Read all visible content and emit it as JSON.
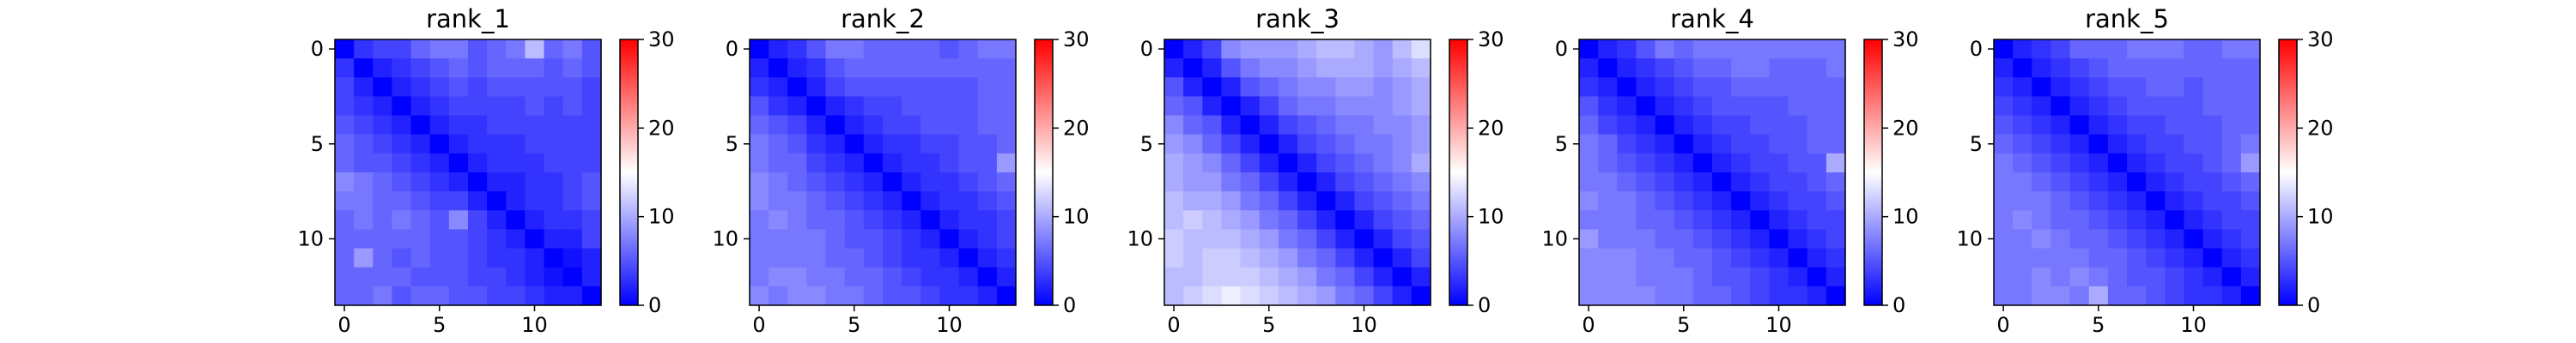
{
  "chart_data": [
    {
      "type": "heatmap",
      "title": "rank_1",
      "colormap": "bwr",
      "colorbar": {
        "range": [
          0,
          30
        ],
        "ticks": [
          0,
          10,
          20,
          30
        ]
      },
      "x_ticks": [
        0,
        5,
        10
      ],
      "y_ticks": [
        0,
        5,
        10
      ],
      "matrix": [
        [
          0,
          3,
          4,
          4,
          6,
          7,
          7,
          5,
          6,
          7,
          11,
          6,
          7,
          5
        ],
        [
          3,
          0,
          2,
          3,
          4,
          5,
          6,
          5,
          6,
          6,
          6,
          5,
          6,
          5
        ],
        [
          4,
          2,
          0,
          2,
          3,
          4,
          5,
          4,
          5,
          5,
          5,
          5,
          5,
          4
        ],
        [
          4,
          3,
          2,
          0,
          2,
          3,
          4,
          4,
          4,
          4,
          5,
          4,
          5,
          4
        ],
        [
          5,
          4,
          3,
          2,
          0,
          2,
          3,
          3,
          4,
          4,
          4,
          4,
          4,
          4
        ],
        [
          6,
          5,
          4,
          3,
          2,
          0,
          2,
          3,
          3,
          3,
          4,
          4,
          4,
          4
        ],
        [
          6,
          5,
          5,
          4,
          3,
          2,
          0,
          2,
          3,
          3,
          3,
          4,
          4,
          4
        ],
        [
          8,
          7,
          6,
          5,
          4,
          3,
          2,
          0,
          2,
          2,
          3,
          3,
          4,
          5
        ],
        [
          7,
          7,
          6,
          6,
          5,
          4,
          4,
          2,
          0,
          2,
          3,
          3,
          4,
          5
        ],
        [
          6,
          7,
          6,
          7,
          6,
          5,
          8,
          4,
          2,
          0,
          2,
          3,
          3,
          4
        ],
        [
          6,
          6,
          6,
          6,
          6,
          5,
          5,
          4,
          3,
          2,
          0,
          2,
          2,
          4
        ],
        [
          6,
          9,
          6,
          5,
          6,
          5,
          5,
          4,
          3,
          3,
          2,
          0,
          1,
          2
        ],
        [
          6,
          6,
          6,
          6,
          5,
          5,
          5,
          4,
          4,
          3,
          2,
          1,
          0,
          2
        ],
        [
          6,
          6,
          7,
          5,
          6,
          6,
          5,
          5,
          4,
          4,
          3,
          2,
          2,
          0
        ]
      ]
    },
    {
      "type": "heatmap",
      "title": "rank_2",
      "colormap": "bwr",
      "colorbar": {
        "range": [
          0,
          30
        ],
        "ticks": [
          0,
          10,
          20,
          30
        ]
      },
      "x_ticks": [
        0,
        5,
        10
      ],
      "y_ticks": [
        0,
        5,
        10
      ],
      "matrix": [
        [
          0,
          2,
          3,
          5,
          7,
          7,
          6,
          6,
          6,
          6,
          5,
          6,
          7,
          7
        ],
        [
          2,
          0,
          2,
          3,
          5,
          6,
          6,
          6,
          6,
          6,
          6,
          6,
          6,
          6
        ],
        [
          3,
          2,
          0,
          2,
          4,
          5,
          5,
          5,
          5,
          5,
          5,
          5,
          6,
          6
        ],
        [
          5,
          3,
          2,
          0,
          2,
          3,
          4,
          4,
          5,
          5,
          5,
          5,
          6,
          6
        ],
        [
          6,
          5,
          4,
          2,
          0,
          2,
          3,
          4,
          4,
          5,
          5,
          5,
          6,
          6
        ],
        [
          7,
          6,
          5,
          3,
          2,
          0,
          2,
          3,
          3,
          4,
          4,
          5,
          5,
          6
        ],
        [
          7,
          6,
          6,
          4,
          3,
          2,
          0,
          2,
          3,
          3,
          4,
          5,
          5,
          9
        ],
        [
          8,
          7,
          6,
          5,
          4,
          3,
          2,
          0,
          2,
          3,
          3,
          4,
          5,
          6
        ],
        [
          8,
          7,
          7,
          6,
          5,
          4,
          3,
          2,
          0,
          2,
          3,
          3,
          4,
          5
        ],
        [
          7,
          8,
          7,
          6,
          6,
          5,
          4,
          3,
          2,
          0,
          2,
          3,
          3,
          4
        ],
        [
          7,
          7,
          7,
          7,
          6,
          5,
          5,
          4,
          3,
          2,
          0,
          2,
          3,
          4
        ],
        [
          7,
          7,
          7,
          7,
          6,
          6,
          5,
          4,
          3,
          3,
          2,
          0,
          2,
          3
        ],
        [
          7,
          8,
          8,
          7,
          7,
          6,
          6,
          5,
          4,
          3,
          3,
          2,
          0,
          2
        ],
        [
          8,
          7,
          8,
          8,
          7,
          7,
          6,
          5,
          5,
          4,
          3,
          3,
          2,
          0
        ]
      ]
    },
    {
      "type": "heatmap",
      "title": "rank_3",
      "colormap": "bwr",
      "colorbar": {
        "range": [
          0,
          30
        ],
        "ticks": [
          0,
          10,
          20,
          30
        ]
      },
      "x_ticks": [
        0,
        5,
        10
      ],
      "y_ticks": [
        0,
        5,
        10
      ],
      "matrix": [
        [
          0,
          2,
          4,
          8,
          9,
          9,
          9,
          10,
          11,
          11,
          10,
          9,
          11,
          13
        ],
        [
          2,
          0,
          2,
          5,
          7,
          8,
          8,
          9,
          10,
          10,
          10,
          9,
          10,
          11
        ],
        [
          5,
          2,
          0,
          2,
          5,
          6,
          7,
          8,
          8,
          9,
          9,
          8,
          9,
          10
        ],
        [
          6,
          5,
          2,
          0,
          2,
          4,
          6,
          7,
          7,
          8,
          8,
          8,
          9,
          10
        ],
        [
          8,
          6,
          5,
          2,
          0,
          2,
          4,
          5,
          6,
          7,
          7,
          8,
          8,
          9
        ],
        [
          9,
          8,
          6,
          4,
          2,
          0,
          2,
          4,
          5,
          6,
          7,
          7,
          8,
          9
        ],
        [
          10,
          9,
          8,
          6,
          4,
          2,
          0,
          2,
          4,
          5,
          6,
          7,
          8,
          10
        ],
        [
          10,
          9,
          9,
          7,
          6,
          4,
          2,
          0,
          2,
          4,
          5,
          6,
          7,
          8
        ],
        [
          11,
          10,
          10,
          9,
          7,
          6,
          4,
          2,
          0,
          2,
          4,
          5,
          6,
          7
        ],
        [
          11,
          12,
          11,
          10,
          9,
          7,
          6,
          4,
          2,
          0,
          2,
          4,
          5,
          6
        ],
        [
          12,
          11,
          11,
          11,
          10,
          9,
          7,
          6,
          4,
          2,
          0,
          2,
          4,
          5
        ],
        [
          12,
          11,
          12,
          12,
          11,
          10,
          9,
          7,
          6,
          4,
          2,
          0,
          2,
          4
        ],
        [
          11,
          11,
          12,
          12,
          12,
          11,
          10,
          9,
          7,
          6,
          4,
          2,
          0,
          2
        ],
        [
          11,
          12,
          13,
          14,
          13,
          12,
          11,
          10,
          9,
          7,
          6,
          4,
          2,
          0
        ]
      ]
    },
    {
      "type": "heatmap",
      "title": "rank_4",
      "colormap": "bwr",
      "colorbar": {
        "range": [
          0,
          30
        ],
        "ticks": [
          0,
          10,
          20,
          30
        ]
      },
      "x_ticks": [
        0,
        5,
        10
      ],
      "y_ticks": [
        0,
        5,
        10
      ],
      "matrix": [
        [
          0,
          2,
          3,
          5,
          7,
          6,
          7,
          7,
          7,
          7,
          7,
          7,
          7,
          7
        ],
        [
          2,
          0,
          2,
          3,
          4,
          5,
          6,
          6,
          7,
          7,
          6,
          6,
          6,
          7
        ],
        [
          3,
          2,
          0,
          2,
          3,
          4,
          5,
          5,
          6,
          6,
          6,
          6,
          6,
          6
        ],
        [
          5,
          3,
          2,
          0,
          2,
          3,
          4,
          5,
          5,
          5,
          5,
          6,
          6,
          6
        ],
        [
          6,
          4,
          3,
          2,
          0,
          2,
          3,
          4,
          4,
          5,
          5,
          5,
          6,
          6
        ],
        [
          7,
          6,
          4,
          3,
          2,
          0,
          2,
          3,
          4,
          4,
          5,
          5,
          6,
          6
        ],
        [
          7,
          6,
          5,
          4,
          3,
          2,
          0,
          2,
          3,
          4,
          4,
          5,
          5,
          10
        ],
        [
          7,
          7,
          6,
          5,
          4,
          3,
          2,
          0,
          2,
          3,
          4,
          4,
          5,
          6
        ],
        [
          8,
          7,
          7,
          6,
          5,
          4,
          3,
          2,
          0,
          2,
          3,
          4,
          4,
          5
        ],
        [
          7,
          7,
          7,
          6,
          6,
          5,
          4,
          3,
          2,
          0,
          2,
          3,
          4,
          4
        ],
        [
          9,
          7,
          7,
          7,
          6,
          6,
          5,
          4,
          3,
          2,
          0,
          2,
          3,
          4
        ],
        [
          8,
          8,
          8,
          7,
          7,
          6,
          6,
          5,
          4,
          3,
          2,
          0,
          2,
          3
        ],
        [
          8,
          8,
          8,
          7,
          7,
          7,
          6,
          5,
          5,
          4,
          3,
          2,
          0,
          2
        ],
        [
          8,
          8,
          8,
          8,
          7,
          7,
          6,
          6,
          5,
          4,
          3,
          3,
          2,
          0
        ]
      ]
    },
    {
      "type": "heatmap",
      "title": "rank_5",
      "colormap": "bwr",
      "colorbar": {
        "range": [
          0,
          30
        ],
        "ticks": [
          0,
          10,
          20,
          30
        ]
      },
      "x_ticks": [
        0,
        5,
        10
      ],
      "y_ticks": [
        0,
        5,
        10
      ],
      "matrix": [
        [
          0,
          2,
          3,
          4,
          6,
          6,
          6,
          7,
          7,
          7,
          6,
          6,
          7,
          7
        ],
        [
          2,
          0,
          2,
          3,
          4,
          5,
          6,
          6,
          6,
          6,
          6,
          6,
          6,
          6
        ],
        [
          3,
          2,
          0,
          2,
          3,
          4,
          5,
          5,
          6,
          6,
          5,
          6,
          6,
          6
        ],
        [
          4,
          3,
          2,
          0,
          2,
          3,
          4,
          5,
          5,
          5,
          5,
          6,
          6,
          6
        ],
        [
          5,
          4,
          3,
          2,
          0,
          2,
          3,
          4,
          4,
          5,
          5,
          5,
          6,
          6
        ],
        [
          6,
          5,
          4,
          3,
          2,
          0,
          2,
          3,
          4,
          4,
          5,
          5,
          6,
          7
        ],
        [
          7,
          6,
          5,
          4,
          3,
          2,
          0,
          2,
          3,
          4,
          4,
          5,
          6,
          9
        ],
        [
          7,
          7,
          6,
          5,
          4,
          3,
          2,
          0,
          2,
          3,
          4,
          4,
          5,
          6
        ],
        [
          7,
          7,
          7,
          6,
          5,
          4,
          3,
          2,
          0,
          2,
          3,
          4,
          4,
          5
        ],
        [
          7,
          8,
          7,
          6,
          6,
          5,
          4,
          3,
          2,
          0,
          2,
          3,
          4,
          4
        ],
        [
          7,
          7,
          8,
          7,
          6,
          6,
          5,
          4,
          3,
          2,
          0,
          2,
          3,
          4
        ],
        [
          7,
          7,
          7,
          7,
          7,
          6,
          6,
          5,
          4,
          3,
          2,
          0,
          2,
          3
        ],
        [
          7,
          7,
          8,
          7,
          8,
          7,
          6,
          5,
          5,
          4,
          3,
          2,
          0,
          2
        ],
        [
          7,
          7,
          8,
          8,
          7,
          10,
          6,
          6,
          5,
          4,
          3,
          3,
          2,
          0
        ]
      ]
    }
  ]
}
